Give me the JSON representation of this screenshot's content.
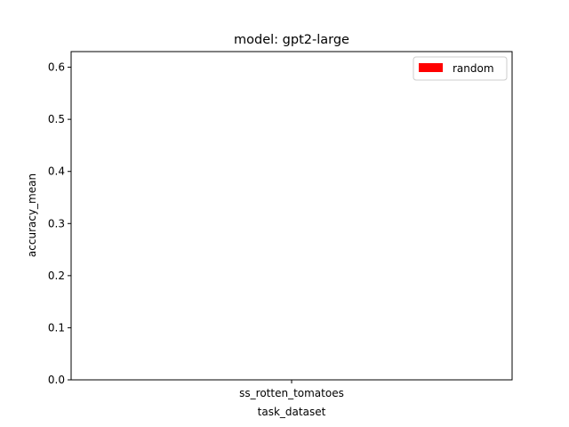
{
  "chart_data": {
    "type": "bar",
    "title": "model: gpt2-large",
    "xlabel": "task_dataset",
    "ylabel": "accuracy_mean",
    "categories": [
      "ss_rotten_tomatoes"
    ],
    "series": [
      {
        "name": "random",
        "values": [
          0.0
        ],
        "color": "#ff0000"
      }
    ],
    "ylim": [
      0,
      0.63
    ],
    "yticks": [
      0.0,
      0.1,
      0.2,
      0.3,
      0.4,
      0.5,
      0.6
    ],
    "ytick_labels": [
      "0.0",
      "0.1",
      "0.2",
      "0.3",
      "0.4",
      "0.5",
      "0.6"
    ],
    "grid": false,
    "legend_position": "top-right"
  }
}
